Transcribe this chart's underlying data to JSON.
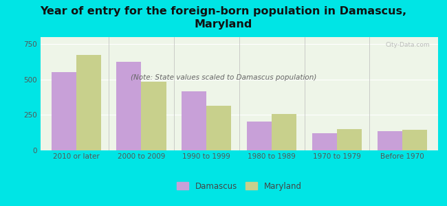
{
  "title": "Year of entry for the foreign-born population in Damascus,\nMaryland",
  "subtitle": "(Note: State values scaled to Damascus population)",
  "categories": [
    "2010 or later",
    "2000 to 2009",
    "1990 to 1999",
    "1980 to 1989",
    "1970 to 1979",
    "Before 1970"
  ],
  "damascus_values": [
    555,
    625,
    415,
    205,
    120,
    135
  ],
  "maryland_values": [
    675,
    485,
    315,
    255,
    150,
    145
  ],
  "damascus_color": "#c8a0d8",
  "maryland_color": "#c8d08c",
  "background_color": "#00e5e5",
  "plot_bg": "#eef5e8",
  "ylim": [
    0,
    800
  ],
  "yticks": [
    0,
    250,
    500,
    750
  ],
  "legend_damascus": "Damascus",
  "legend_maryland": "Maryland",
  "watermark": "City-Data.com",
  "title_fontsize": 11.5,
  "subtitle_fontsize": 7.5,
  "tick_fontsize": 7.5,
  "legend_fontsize": 8.5
}
